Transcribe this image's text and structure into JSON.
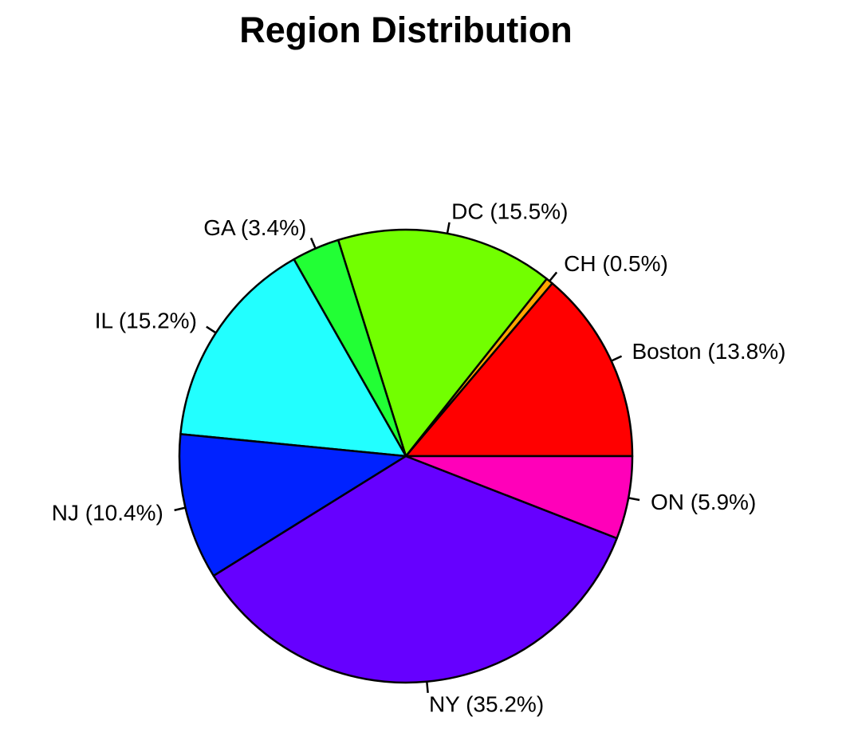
{
  "chart_data": {
    "type": "pie",
    "title": "Region Distribution",
    "slices": [
      {
        "label": "Boston (13.8%)",
        "value": 13.8,
        "color": "#FF0000"
      },
      {
        "label": "CH (0.5%)",
        "value": 0.5,
        "color": "#FFA500"
      },
      {
        "label": "DC (15.5%)",
        "value": 15.5,
        "color": "#72FF00"
      },
      {
        "label": "GA (3.4%)",
        "value": 3.4,
        "color": "#22FF35"
      },
      {
        "label": "IL (15.2%)",
        "value": 15.2,
        "color": "#22FFFF"
      },
      {
        "label": "NJ (10.4%)",
        "value": 10.4,
        "color": "#0022FF"
      },
      {
        "label": "NY (35.2%)",
        "value": 35.2,
        "color": "#6600FF"
      },
      {
        "label": "ON (5.9%)",
        "value": 5.9,
        "color": "#FF00B9"
      }
    ],
    "start_angle_deg": 0,
    "direction": "counterclockwise"
  }
}
